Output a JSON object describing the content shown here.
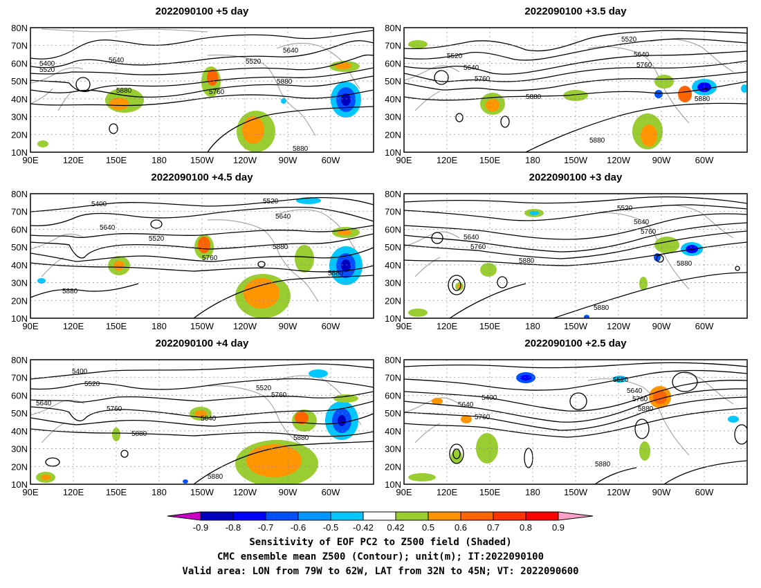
{
  "panels": [
    {
      "title": "2022090100 +5 day"
    },
    {
      "title": "2022090100 +3.5 day"
    },
    {
      "title": "2022090100 +4.5 day"
    },
    {
      "title": "2022090100 +3 day"
    },
    {
      "title": "2022090100 +4 day"
    },
    {
      "title": "2022090100 +2.5 day"
    }
  ],
  "axes": {
    "lon_ticks": [
      "90E",
      "120E",
      "150E",
      "180",
      "150W",
      "120W",
      "90W",
      "60W"
    ],
    "lat_ticks": [
      "80N",
      "70N",
      "60N",
      "50N",
      "40N",
      "30N",
      "20N",
      "10N"
    ]
  },
  "contour_levels": [
    "5400",
    "5520",
    "5640",
    "5760",
    "5880"
  ],
  "colorbar": {
    "ticks": [
      "-0.9",
      "-0.8",
      "-0.7",
      "-0.6",
      "-0.5",
      "-0.42",
      "0.42",
      "0.5",
      "0.6",
      "0.7",
      "0.8",
      "0.9"
    ],
    "colors": [
      "#c800c8",
      "#0000c0",
      "#0000ff",
      "#0050ff",
      "#0096ff",
      "#00c8ff",
      "#ffffff",
      "#9acd32",
      "#ff9600",
      "#ff6400",
      "#ff3200",
      "#ff0000",
      "#ffa0c8"
    ]
  },
  "caption": {
    "line1": "Sensitivity of EOF PC2 to Z500 field (Shaded)",
    "line2": "CMC ensemble mean Z500 (Contour); unit(m); IT:2022090100",
    "line3": "Valid area: LON from 79W to 62W, LAT from 32N to 45N; VT: 2022090600"
  }
}
